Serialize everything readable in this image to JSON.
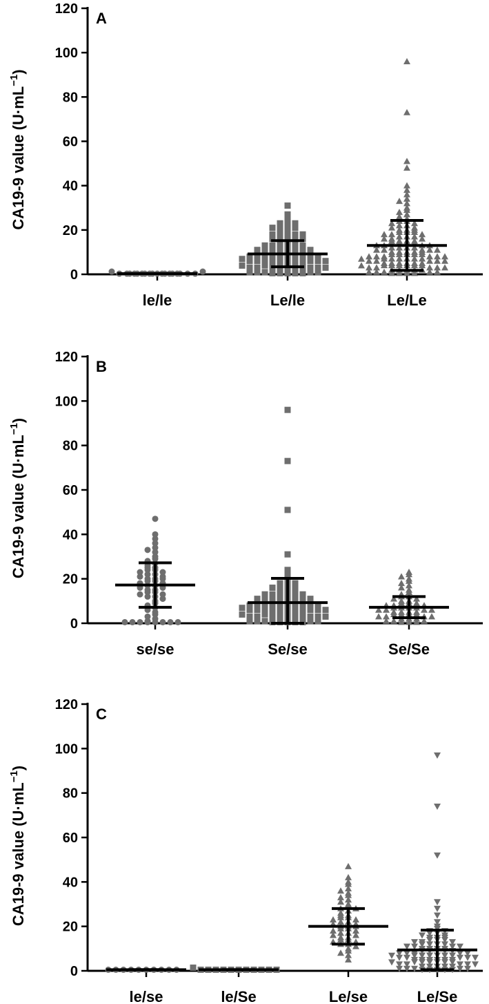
{
  "chart_data": [
    {
      "type": "scatter",
      "panel_label": "A",
      "ylabel": "CA19-9 value (U·mL",
      "ylabel_sup": "−1",
      "ylim": [
        0,
        120
      ],
      "yticks": [
        "0",
        "20",
        "40",
        "60",
        "80",
        "100",
        "120"
      ],
      "categories": [
        {
          "name": "le/le",
          "marker": "circle",
          "values": [
            0.3,
            0.3,
            0.3,
            0.3,
            0.3,
            0.3,
            0.3,
            0.3,
            0.3,
            0.3,
            0.3,
            0.3,
            0.3,
            0.3,
            0.3,
            0.3,
            0.3,
            0.3,
            0.3,
            0.3
          ],
          "mean": 0.3,
          "sd_low": 0.3,
          "sd_high": 0.3
        },
        {
          "name": "Le/le",
          "marker": "square",
          "values": [
            31,
            27,
            25,
            24,
            23,
            23,
            22,
            22,
            21,
            21,
            20,
            20,
            19,
            19,
            18,
            18,
            18,
            17,
            17,
            16,
            16,
            16,
            15,
            15,
            15,
            14,
            14,
            14,
            13,
            13,
            13,
            12,
            12,
            12,
            12,
            11,
            11,
            11,
            11,
            10,
            10,
            10,
            10,
            9,
            9,
            9,
            9,
            9,
            8,
            8,
            8,
            8,
            8,
            7,
            7,
            7,
            7,
            7,
            7,
            6,
            6,
            6,
            6,
            6,
            6,
            5,
            5,
            5,
            5,
            5,
            5,
            4,
            4,
            4,
            4,
            4,
            4,
            3,
            3,
            3,
            3,
            3,
            3,
            2,
            2,
            2,
            2,
            2,
            1,
            1,
            1,
            1,
            1,
            0.5,
            0.5,
            0.5,
            0.5,
            0.5
          ],
          "mean": 9.2,
          "sd_low": 3.4,
          "sd_high": 15.2
        },
        {
          "name": "Le/Le",
          "marker": "triangle-up",
          "values": [
            96,
            73,
            51,
            48,
            40,
            38,
            36,
            34,
            33,
            32,
            30,
            29,
            28,
            27,
            26,
            25,
            25,
            24,
            24,
            23,
            23,
            22,
            22,
            21,
            21,
            20,
            20,
            20,
            19,
            19,
            19,
            18,
            18,
            18,
            17,
            17,
            17,
            16,
            16,
            16,
            15,
            15,
            15,
            15,
            14,
            14,
            14,
            14,
            13,
            13,
            13,
            13,
            12,
            12,
            12,
            12,
            11,
            11,
            11,
            11,
            11,
            10,
            10,
            10,
            10,
            10,
            9,
            9,
            9,
            9,
            9,
            8,
            8,
            8,
            8,
            8,
            8,
            7,
            7,
            7,
            7,
            7,
            7,
            6,
            6,
            6,
            6,
            6,
            6,
            5,
            5,
            5,
            5,
            5,
            5,
            4,
            4,
            4,
            4,
            4,
            4,
            3,
            3,
            3,
            3,
            3,
            3,
            2,
            2,
            2,
            2,
            2,
            1,
            1,
            1,
            1,
            1,
            0.5,
            0.5,
            0.5,
            0.5
          ],
          "mean": 13.0,
          "sd_low": 1.8,
          "sd_high": 24.3
        }
      ]
    },
    {
      "type": "scatter",
      "panel_label": "B",
      "ylabel": "CA19-9 value (U·mL",
      "ylabel_sup": "−1",
      "ylim": [
        0,
        120
      ],
      "yticks": [
        "0",
        "20",
        "40",
        "60",
        "80",
        "100",
        "120"
      ],
      "categories": [
        {
          "name": "se/se",
          "marker": "circle",
          "values": [
            47,
            40,
            38,
            36,
            34,
            33,
            32,
            30,
            29,
            28,
            27,
            26,
            25,
            25,
            24,
            24,
            23,
            23,
            22,
            22,
            21,
            21,
            20,
            20,
            20,
            19,
            19,
            18,
            18,
            17,
            17,
            16,
            16,
            15,
            15,
            14,
            14,
            13,
            13,
            12,
            12,
            11,
            10,
            9,
            8,
            7,
            6,
            5,
            4,
            3,
            2,
            1,
            0.5,
            0.5,
            0.5,
            0.5,
            0.5,
            0.5,
            0.5,
            0.5
          ],
          "mean": 17.2,
          "sd_low": 7.2,
          "sd_high": 27.2
        },
        {
          "name": "Se/se",
          "marker": "square",
          "values": [
            96,
            73,
            51,
            31,
            24,
            22,
            20,
            19,
            18,
            18,
            17,
            17,
            16,
            16,
            15,
            15,
            15,
            14,
            14,
            14,
            13,
            13,
            13,
            12,
            12,
            12,
            12,
            11,
            11,
            11,
            11,
            10,
            10,
            10,
            10,
            9,
            9,
            9,
            9,
            9,
            8,
            8,
            8,
            8,
            8,
            7,
            7,
            7,
            7,
            7,
            7,
            6,
            6,
            6,
            6,
            6,
            6,
            5,
            5,
            5,
            5,
            5,
            5,
            4,
            4,
            4,
            4,
            4,
            4,
            3,
            3,
            3,
            3,
            3,
            3,
            2,
            2,
            2,
            2,
            2,
            1,
            1,
            1,
            1,
            1,
            0.5,
            0.5,
            0.5,
            0.5,
            0.5
          ],
          "mean": 9.3,
          "sd_low": 0,
          "sd_high": 20.2
        },
        {
          "name": "Se/Se",
          "marker": "triangle-up",
          "values": [
            23,
            22,
            21,
            20,
            19,
            18,
            17,
            16,
            15,
            14,
            13,
            12,
            12,
            11,
            11,
            10,
            10,
            9,
            9,
            9,
            8,
            8,
            8,
            7,
            7,
            7,
            7,
            6,
            6,
            6,
            6,
            5,
            5,
            5,
            5,
            4,
            4,
            4,
            4,
            3,
            3,
            3,
            3,
            2,
            2,
            2,
            1,
            1,
            1,
            0.5,
            0.5,
            0.5
          ],
          "mean": 7.2,
          "sd_low": 2.5,
          "sd_high": 12.0
        }
      ]
    },
    {
      "type": "scatter",
      "panel_label": "C",
      "ylabel": "CA19-9 value (U·mL",
      "ylabel_sup": "−1",
      "ylim": [
        0,
        120
      ],
      "yticks": [
        "0",
        "20",
        "40",
        "60",
        "80",
        "100",
        "120"
      ],
      "categories": [
        {
          "name": "le/se",
          "marker": "circle",
          "values": [
            0.5,
            0.5,
            0.5,
            0.5,
            0.5,
            0.5,
            0.5,
            0.5,
            0.5,
            0.5
          ],
          "mean": 0.5,
          "sd_low": 0.5,
          "sd_high": 0.5
        },
        {
          "name": "le/Se",
          "marker": "square",
          "values": [
            0.5,
            0.5,
            0.5,
            0.5,
            0.5,
            0.5,
            0.5,
            0.5,
            0.5,
            0.5,
            0.5,
            0.5
          ],
          "mean": 0.5,
          "sd_low": 0.5,
          "sd_high": 0.5
        },
        {
          "name": "Le/se",
          "marker": "triangle-up",
          "values": [
            47,
            42,
            40,
            39,
            37,
            36,
            35,
            34,
            33,
            32,
            31,
            30,
            29,
            28,
            28,
            27,
            26,
            25,
            25,
            24,
            24,
            23,
            23,
            22,
            22,
            21,
            21,
            20,
            20,
            20,
            19,
            19,
            18,
            18,
            17,
            17,
            16,
            16,
            15,
            15,
            14,
            14,
            13,
            13,
            12,
            12,
            11,
            10,
            9,
            8,
            7,
            5
          ],
          "mean": 20.0,
          "sd_low": 12.0,
          "sd_high": 28.0
        },
        {
          "name": "Le/Se",
          "marker": "triangle-down",
          "values": [
            97,
            74,
            52,
            31,
            28,
            25,
            22,
            20,
            19,
            18,
            18,
            17,
            17,
            16,
            16,
            15,
            15,
            15,
            14,
            14,
            14,
            13,
            13,
            13,
            12,
            12,
            12,
            12,
            11,
            11,
            11,
            11,
            10,
            10,
            10,
            10,
            9,
            9,
            9,
            9,
            9,
            8,
            8,
            8,
            8,
            8,
            7,
            7,
            7,
            7,
            7,
            7,
            6,
            6,
            6,
            6,
            6,
            6,
            5,
            5,
            5,
            5,
            5,
            5,
            4,
            4,
            4,
            4,
            4,
            4,
            3,
            3,
            3,
            3,
            3,
            3,
            2,
            2,
            2,
            2,
            2,
            1,
            1,
            1,
            1,
            1,
            0.5,
            0.5,
            0.5,
            0.5,
            0.5
          ],
          "mean": 9.4,
          "sd_low": 0.5,
          "sd_high": 18.3
        }
      ]
    }
  ],
  "colors": {
    "points": "#6e6e6e",
    "axes": "#000000"
  }
}
